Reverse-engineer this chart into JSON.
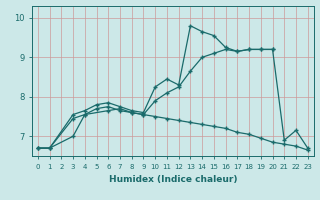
{
  "xlabel": "Humidex (Indice chaleur)",
  "xlim": [
    -0.5,
    23.5
  ],
  "ylim": [
    6.5,
    10.3
  ],
  "yticks": [
    7,
    8,
    9,
    10
  ],
  "xticks": [
    0,
    1,
    2,
    3,
    4,
    5,
    6,
    7,
    8,
    9,
    10,
    11,
    12,
    13,
    14,
    15,
    16,
    17,
    18,
    19,
    20,
    21,
    22,
    23
  ],
  "bg_color": "#cce8e8",
  "line_color": "#1a6b6b",
  "grid_color": "#cc9999",
  "line1_x": [
    0,
    1,
    3,
    4,
    5,
    6,
    7,
    8,
    9,
    10,
    11,
    12,
    13,
    14,
    15,
    16,
    17,
    18,
    19,
    20,
    21,
    22,
    23
  ],
  "line1_y": [
    6.7,
    6.7,
    7.55,
    7.65,
    7.8,
    7.85,
    7.75,
    7.65,
    7.6,
    8.25,
    8.45,
    8.3,
    9.8,
    9.65,
    9.55,
    9.25,
    9.15,
    9.2,
    9.2,
    9.2,
    6.9,
    7.15,
    6.7
  ],
  "line2_x": [
    0,
    1,
    3,
    4,
    5,
    6,
    7,
    8,
    9,
    10,
    11,
    12,
    13,
    14,
    15,
    16,
    17,
    18,
    19,
    20
  ],
  "line2_y": [
    6.7,
    6.7,
    7.45,
    7.55,
    7.7,
    7.75,
    7.65,
    7.6,
    7.55,
    7.9,
    8.1,
    8.25,
    8.65,
    9.0,
    9.1,
    9.2,
    9.15,
    9.2,
    9.2,
    9.2
  ],
  "line3_x": [
    0,
    1,
    3,
    4,
    6,
    7,
    8,
    9,
    10,
    11,
    12,
    13,
    14,
    15,
    16,
    17,
    18,
    19,
    20,
    21,
    22,
    23
  ],
  "line3_y": [
    6.7,
    6.7,
    7.0,
    7.55,
    7.65,
    7.7,
    7.6,
    7.55,
    7.5,
    7.45,
    7.4,
    7.35,
    7.3,
    7.25,
    7.2,
    7.1,
    7.05,
    6.95,
    6.85,
    6.8,
    6.75,
    6.65
  ]
}
